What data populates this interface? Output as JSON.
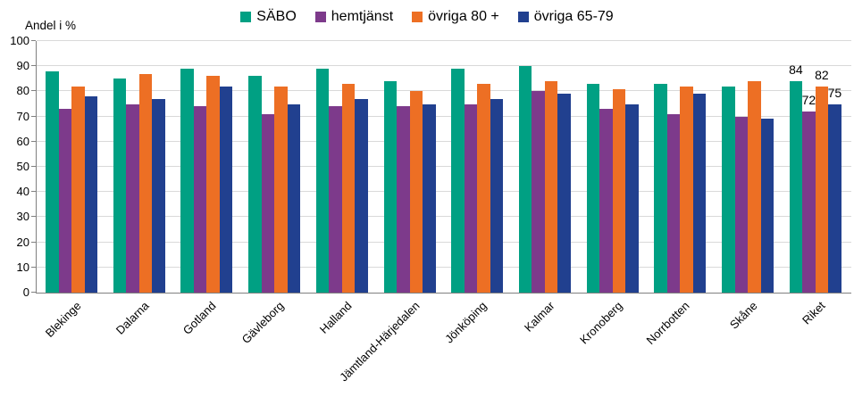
{
  "colors": {
    "background": "#FFFFFF",
    "grid": "#D9D9D9",
    "axis": "#808080",
    "text": "#000000"
  },
  "chart_data": {
    "type": "bar",
    "title": "",
    "ylabel": "Andel i %",
    "xlabel": "",
    "ylim": [
      0,
      100
    ],
    "ytick_step": 10,
    "grid": true,
    "legend_position": "top-center",
    "categories": [
      "Blekinge",
      "Dalarna",
      "Gotland",
      "Gävleborg",
      "Halland",
      "Jämtland-Härjedalen",
      "Jönköping",
      "Kalmar",
      "Kronoberg",
      "Norrbotten",
      "Skåne",
      "Riket"
    ],
    "series": [
      {
        "name": "SÄBO",
        "color": "#00A083",
        "values": [
          88,
          85,
          89,
          86,
          89,
          84,
          89,
          90,
          83,
          83,
          82,
          84
        ]
      },
      {
        "name": "hemtjänst",
        "color": "#7D3A8B",
        "values": [
          73,
          75,
          74,
          71,
          74,
          74,
          75,
          80,
          73,
          71,
          70,
          72
        ]
      },
      {
        "name": "övriga 80 +",
        "color": "#ED6F24",
        "values": [
          82,
          87,
          86,
          82,
          83,
          80,
          83,
          84,
          81,
          82,
          84,
          82
        ]
      },
      {
        "name": "övriga 65-79",
        "color": "#21408F",
        "values": [
          78,
          77,
          82,
          75,
          77,
          75,
          77,
          79,
          75,
          79,
          69,
          75
        ]
      }
    ],
    "data_labels": {
      "category": "Riket",
      "values": {
        "SÄBO": 84,
        "hemtjänst": 72,
        "övriga 80 +": 82,
        "övriga 65-79": 75
      }
    }
  }
}
